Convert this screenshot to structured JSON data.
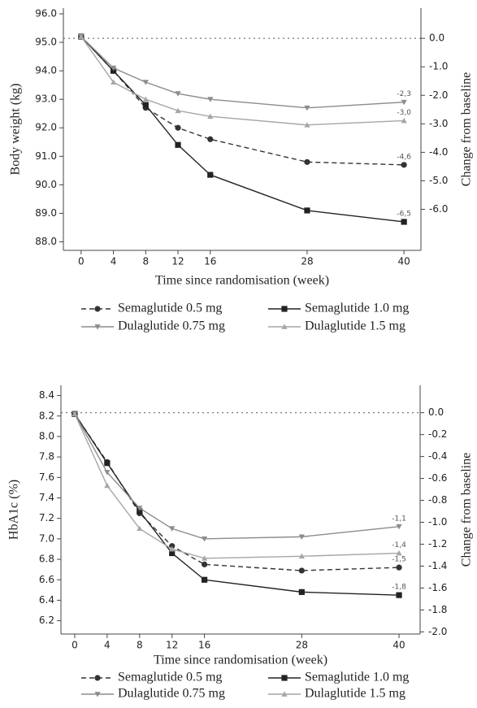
{
  "chart_data": [
    {
      "type": "line",
      "y_label": "Body weight (kg)",
      "y2_label": "Change from baseline",
      "x_label": "Time since randomisation (week)",
      "x": [
        0,
        4,
        8,
        12,
        16,
        28,
        40
      ],
      "xlim": [
        -2.2,
        42.1
      ],
      "xticks": [
        0,
        4,
        8,
        12,
        16,
        28,
        40
      ],
      "ylim": [
        87.7,
        96.2
      ],
      "yticks": [
        {
          "value": 88,
          "label": "88.0"
        },
        {
          "value": 89,
          "label": "89.0"
        },
        {
          "value": 90,
          "label": "90.0"
        },
        {
          "value": 91,
          "label": "91.0"
        },
        {
          "value": 92,
          "label": "92.0"
        },
        {
          "value": 93,
          "label": "93.0"
        },
        {
          "value": 94,
          "label": "94.0"
        },
        {
          "value": 95,
          "label": "95.0"
        },
        {
          "value": 96,
          "label": "96.0"
        }
      ],
      "y2lim": [
        -7.44,
        1.06
      ],
      "y2ticks": [
        {
          "value": 0,
          "label": "0.0"
        },
        {
          "value": -1,
          "label": "-1.0"
        },
        {
          "value": -2,
          "label": "-2.0"
        },
        {
          "value": -3,
          "label": "-3.0"
        },
        {
          "value": -4,
          "label": "-4.0"
        },
        {
          "value": -5,
          "label": "-5.0"
        },
        {
          "value": -6,
          "label": "-6.0"
        }
      ],
      "series": [
        {
          "name": "Semaglutide 0.5 mg",
          "color": "#333333",
          "marker": "circle",
          "dashed": true,
          "end_label": "-4,6",
          "values": [
            95.2,
            94.0,
            92.7,
            92.0,
            91.6,
            90.8,
            90.7
          ]
        },
        {
          "name": "Semaglutide 1.0 mg",
          "color": "#222222",
          "marker": "square",
          "dashed": false,
          "end_label": "-6,5",
          "values": [
            95.2,
            94.0,
            92.8,
            91.4,
            90.35,
            89.1,
            88.7
          ]
        },
        {
          "name": "Dulaglutide 0.75 mg",
          "color": "#8c8c8c",
          "marker": "triangle-down",
          "dashed": false,
          "end_label": "-2,3",
          "values": [
            95.2,
            94.1,
            93.6,
            93.2,
            93.0,
            92.7,
            92.9
          ]
        },
        {
          "name": "Dulaglutide 1.5 mg",
          "color": "#a6a6a6",
          "marker": "triangle-up",
          "dashed": false,
          "end_label": "-3,0",
          "values": [
            95.2,
            93.6,
            93.0,
            92.6,
            92.4,
            92.1,
            92.25
          ]
        }
      ]
    },
    {
      "type": "line",
      "y_label": "HbA1c (%)",
      "y2_label": "Change from baseline",
      "x_label": "Time since randomisation (week)",
      "x": [
        0,
        4,
        8,
        12,
        16,
        28,
        40
      ],
      "xlim": [
        -1.7,
        42.6
      ],
      "xticks": [
        0,
        4,
        8,
        12,
        16,
        28,
        40
      ],
      "ylim": [
        6.07,
        8.5
      ],
      "yticks": [
        6.2,
        6.4,
        6.6,
        6.8,
        {
          "value": 7,
          "label": "7.0"
        },
        7.2,
        7.4,
        7.6,
        7.8,
        {
          "value": 8,
          "label": "8.0"
        },
        8.2,
        8.4
      ],
      "y2lim": [
        -2.02,
        0.25
      ],
      "y2ticks": [
        {
          "value": 0,
          "label": "0.0"
        },
        -0.2,
        -0.4,
        -0.6,
        -0.8,
        {
          "value": -1,
          "label": "-1.0"
        },
        -1.2,
        -1.4,
        -1.6,
        -1.8,
        {
          "value": -2,
          "label": "-2.0"
        }
      ],
      "series": [
        {
          "name": "Semaglutide 0.5 mg",
          "color": "#333333",
          "marker": "circle",
          "dashed": true,
          "end_label": "-1,5",
          "values": [
            8.22,
            7.75,
            7.25,
            6.93,
            6.75,
            6.69,
            6.72
          ]
        },
        {
          "name": "Semaglutide 1.0 mg",
          "color": "#222222",
          "marker": "square",
          "dashed": false,
          "end_label": "-1,8",
          "values": [
            8.22,
            7.74,
            7.27,
            6.86,
            6.6,
            6.48,
            6.45
          ]
        },
        {
          "name": "Dulaglutide 0.75 mg",
          "color": "#8c8c8c",
          "marker": "triangle-down",
          "dashed": false,
          "end_label": "-1,1",
          "values": [
            8.22,
            7.65,
            7.3,
            7.1,
            7.0,
            7.02,
            7.12
          ]
        },
        {
          "name": "Dulaglutide 1.5 mg",
          "color": "#a6a6a6",
          "marker": "triangle-up",
          "dashed": false,
          "end_label": "-1,4",
          "values": [
            8.22,
            7.52,
            7.1,
            6.9,
            6.81,
            6.83,
            6.86
          ]
        }
      ]
    }
  ]
}
